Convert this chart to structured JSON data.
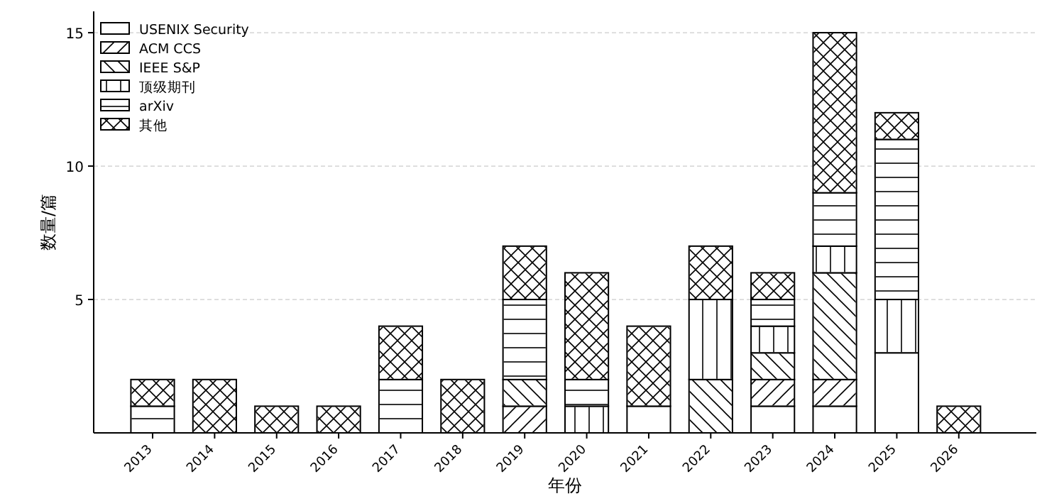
{
  "chart_data": {
    "type": "bar",
    "stacked": true,
    "xlabel": "年份",
    "ylabel": "数量/篇",
    "categories": [
      "2013",
      "2014",
      "2015",
      "2016",
      "2017",
      "2018",
      "2019",
      "2020",
      "2021",
      "2022",
      "2023",
      "2024",
      "2025",
      "2026"
    ],
    "series": [
      {
        "name": "USENIX Security",
        "color": "#ffffff",
        "values": [
          0,
          0,
          0,
          0,
          0,
          0,
          0,
          0,
          1,
          0,
          1,
          1,
          3,
          0
        ]
      },
      {
        "name": "ACM CCS",
        "color": "#ffffff",
        "values": [
          0,
          0,
          0,
          0,
          0,
          0,
          1,
          0,
          0,
          0,
          1,
          1,
          0,
          0
        ]
      },
      {
        "name": "IEEE S&P",
        "color": "#ffffff",
        "values": [
          0,
          0,
          0,
          0,
          0,
          0,
          1,
          0,
          0,
          2,
          1,
          4,
          0,
          0
        ]
      },
      {
        "name": "顶级期刊",
        "color": "#ffffff",
        "values": [
          0,
          0,
          0,
          0,
          0,
          0,
          0,
          1,
          0,
          3,
          1,
          1,
          2,
          0
        ]
      },
      {
        "name": "arXiv",
        "color": "#ffffff",
        "values": [
          1,
          0,
          0,
          0,
          2,
          0,
          3,
          1,
          0,
          0,
          1,
          2,
          6,
          0
        ]
      },
      {
        "name": "其他",
        "color": "#ffffff",
        "values": [
          1,
          2,
          1,
          1,
          2,
          2,
          2,
          4,
          3,
          2,
          1,
          6,
          1,
          1
        ]
      }
    ],
    "ylim": [
      0,
      15.8
    ],
    "yticks": [
      5,
      10,
      15
    ],
    "grid": "y",
    "legend": "top left"
  }
}
